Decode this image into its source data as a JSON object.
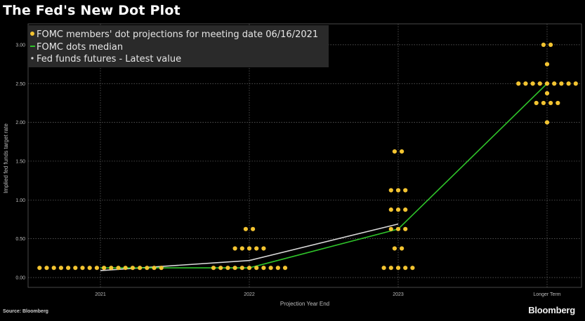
{
  "title": "The Fed's New Dot Plot",
  "source": "Source: Bloomberg",
  "brand": "Bloomberg",
  "colors": {
    "dots": "#f3c431",
    "median": "#2fc42a",
    "futures": "#d9d9d9",
    "background": "#000000"
  },
  "chart_data": {
    "type": "scatter",
    "title": "The Fed's New Dot Plot",
    "xlabel": "Projection Year End",
    "ylabel": "Implied fed funds target rate",
    "categories": [
      "2021",
      "2022",
      "2023",
      "Longer Term"
    ],
    "y_ticks": [
      "0.00",
      "0.50",
      "1.00",
      "1.50",
      "2.00",
      "2.50",
      "3.00"
    ],
    "ylim": [
      -0.15,
      3.2
    ],
    "grid": true,
    "legend_position": "top-left",
    "series": [
      {
        "name": "FOMC members' dot projections for meeting date 06/16/2021",
        "marker": "dot",
        "points": [
          {
            "category": "2021",
            "value": 0.125,
            "count": 18
          }
        ]
      },
      {
        "name": "FOMC dots median",
        "marker": "line",
        "values": [
          0.125,
          0.125,
          0.625,
          2.5
        ]
      },
      {
        "name": "Fed funds futures - Latest value",
        "marker": "line",
        "values": [
          0.09,
          0.22,
          0.69,
          null
        ]
      }
    ],
    "dot_groups": [
      {
        "category": "2021",
        "rows": [
          {
            "value": 0.125,
            "count": 18
          }
        ]
      },
      {
        "category": "2022",
        "rows": [
          {
            "value": 0.125,
            "count": 11
          },
          {
            "value": 0.375,
            "count": 5
          },
          {
            "value": 0.625,
            "count": 2
          }
        ]
      },
      {
        "category": "2023",
        "rows": [
          {
            "value": 0.125,
            "count": 5
          },
          {
            "value": 0.375,
            "count": 2
          },
          {
            "value": 0.625,
            "count": 3
          },
          {
            "value": 0.875,
            "count": 3
          },
          {
            "value": 1.125,
            "count": 3
          },
          {
            "value": 1.625,
            "count": 2
          }
        ]
      },
      {
        "category": "Longer Term",
        "rows": [
          {
            "value": 2.0,
            "count": 1
          },
          {
            "value": 2.25,
            "count": 4
          },
          {
            "value": 2.375,
            "count": 1
          },
          {
            "value": 2.5,
            "count": 9
          },
          {
            "value": 2.75,
            "count": 1
          },
          {
            "value": 3.0,
            "count": 2
          }
        ]
      }
    ]
  }
}
